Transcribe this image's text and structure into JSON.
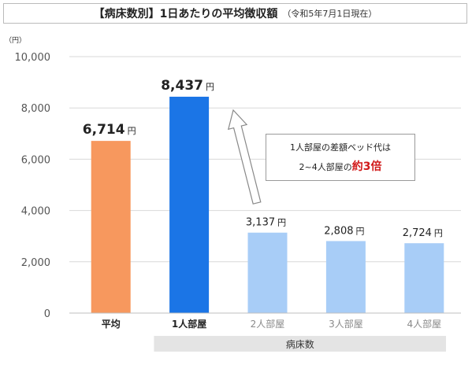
{
  "header": {
    "title": "【病床数別】1日あたりの平均徴収額",
    "subtitle": "（令和5年7月1日現在）"
  },
  "callout": {
    "line1": "1人部屋の差額ベッド代は",
    "line2_prefix": "2~4人部屋の",
    "line2_highlight": "約3倍"
  },
  "chart_data": {
    "type": "bar",
    "title": "【病床数別】1日あたりの平均徴収額",
    "ylabel": "（円）",
    "xlabel": "病床数",
    "ylim": [
      0,
      10000
    ],
    "yticks": [
      0,
      2000,
      4000,
      6000,
      8000,
      10000
    ],
    "ytick_labels": [
      "0",
      "2,000",
      "4,000",
      "6,000",
      "8,000",
      "10,000"
    ],
    "grid": true,
    "categories": [
      "平均",
      "1人部屋",
      "2人部屋",
      "3人部屋",
      "4人部屋"
    ],
    "values": [
      6714,
      8437,
      3137,
      2808,
      2724
    ],
    "value_labels": [
      "6,714",
      "8,437",
      "3,137",
      "2,808",
      "2,724"
    ],
    "value_unit": "円",
    "bar_colors": [
      "#f7985e",
      "#1b75e6",
      "#a8cdf7",
      "#a8cdf7",
      "#a8cdf7"
    ],
    "label_bold": [
      true,
      true,
      false,
      false,
      false
    ],
    "group_band_label": "病床数"
  }
}
